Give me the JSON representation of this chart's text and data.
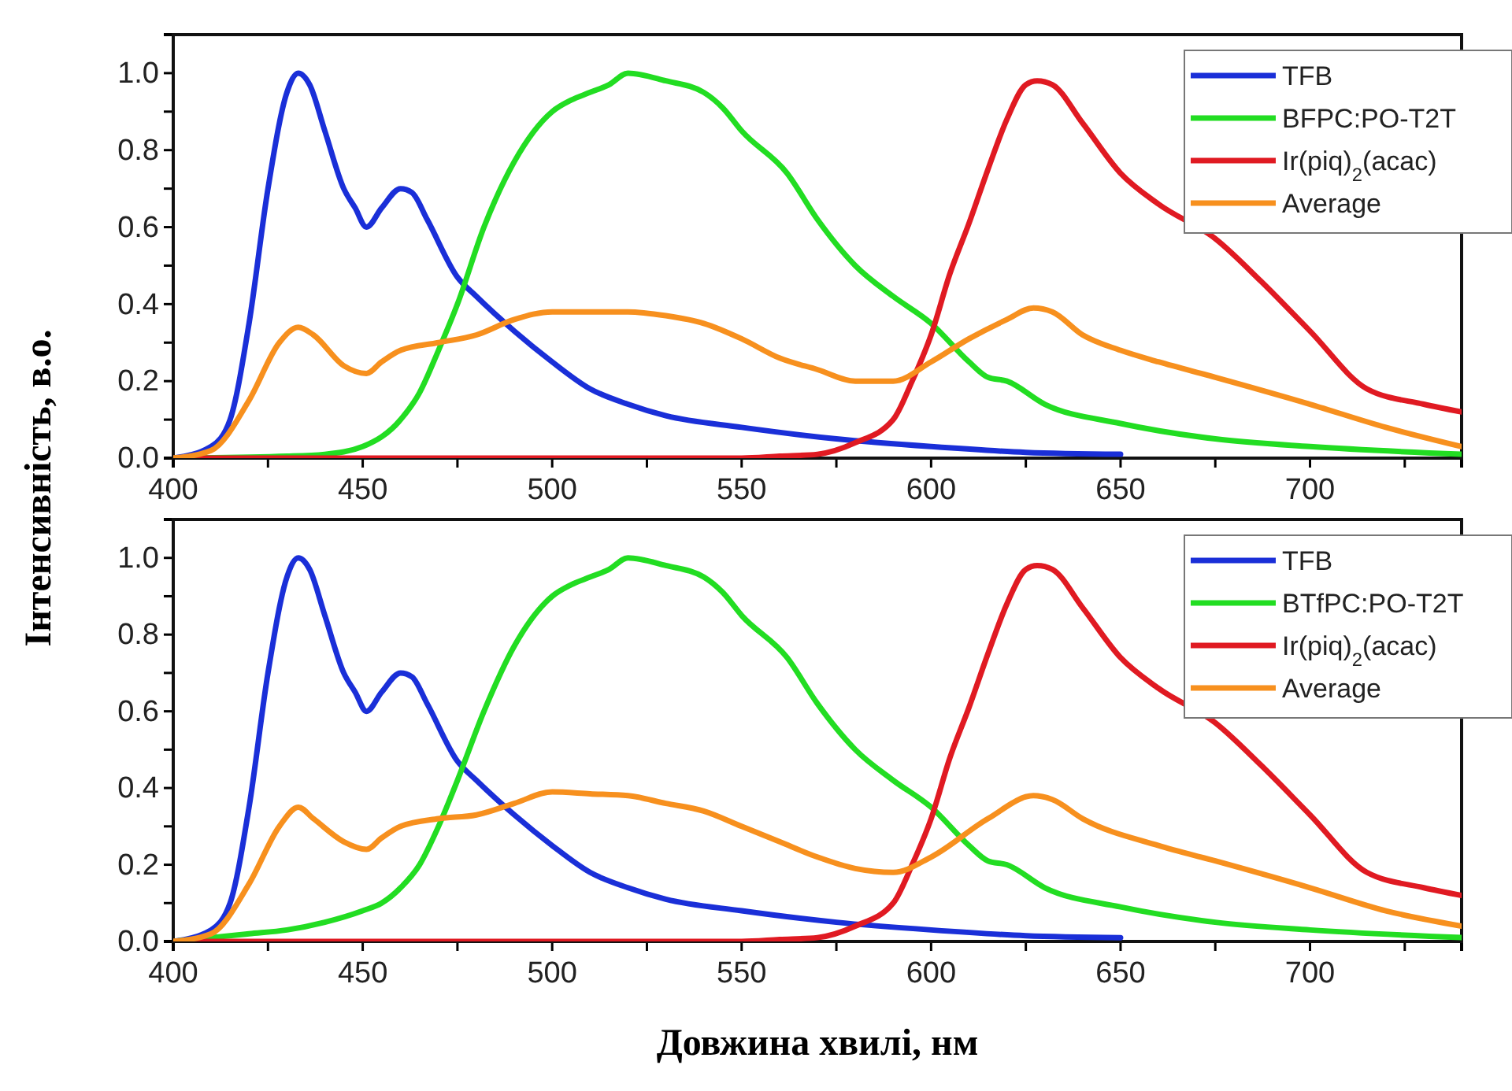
{
  "chart_data": [
    {
      "type": "line",
      "ylabel": "Інтенсивність, в.о.",
      "xlim": [
        400,
        740
      ],
      "ylim": [
        0,
        1.1
      ],
      "xticks": [
        400,
        {
          "value": 425,
          "label": null
        },
        450,
        {
          "value": 475,
          "label": null
        },
        500,
        {
          "value": 525,
          "label": null
        },
        550,
        {
          "value": 575,
          "label": null
        },
        600,
        {
          "value": 625,
          "label": null
        },
        650,
        {
          "value": 675,
          "label": null
        },
        700,
        {
          "value": 725,
          "label": null
        }
      ],
      "yticks": [
        {
          "value": 0,
          "label": "0.0"
        },
        {
          "value": 0.1,
          "label": null
        },
        0.2,
        {
          "value": 0.3,
          "label": null
        },
        0.4,
        {
          "value": 0.5,
          "label": null
        },
        0.6,
        {
          "value": 0.7,
          "label": null
        },
        0.8,
        {
          "value": 0.9,
          "label": null
        },
        {
          "value": 1,
          "label": "1.0"
        }
      ],
      "legend": "top right",
      "grid": false,
      "series": [
        {
          "name": "TFB",
          "color": "#1a2fd8",
          "x": [
            400,
            410,
            415,
            420,
            425,
            430,
            433,
            436,
            440,
            445,
            448,
            451,
            455,
            460,
            463,
            467,
            475,
            480,
            490,
            500,
            510,
            520,
            530,
            550,
            575,
            600,
            625,
            650
          ],
          "values": [
            0,
            0.03,
            0.1,
            0.35,
            0.7,
            0.95,
            1,
            0.97,
            0.85,
            0.7,
            0.65,
            0.6,
            0.65,
            0.7,
            0.69,
            0.62,
            0.47,
            0.42,
            0.33,
            0.25,
            0.18,
            0.14,
            0.11,
            0.08,
            0.05,
            0.03,
            0.015,
            0.01
          ]
        },
        {
          "name": "BFPC:PO-T2T",
          "color": "#22dd22",
          "x": [
            400,
            430,
            440,
            450,
            460,
            465,
            470,
            475,
            482,
            490,
            500,
            505,
            510,
            515,
            520,
            530,
            540,
            545,
            550,
            562,
            570,
            580,
            590,
            600,
            610,
            615,
            620,
            630,
            650,
            675,
            700,
            740
          ],
          "values": [
            0,
            0.005,
            0.01,
            0.03,
            0.1,
            0.17,
            0.28,
            0.4,
            0.6,
            0.77,
            0.9,
            0.93,
            0.95,
            0.97,
            1,
            0.98,
            0.95,
            0.91,
            0.85,
            0.74,
            0.62,
            0.5,
            0.42,
            0.35,
            0.25,
            0.21,
            0.2,
            0.14,
            0.09,
            0.05,
            0.03,
            0.01
          ]
        },
        {
          "name": "Ir(piq)$_{2}$(acac)",
          "color": "#e01a22",
          "x": [
            400,
            550,
            560,
            570,
            580,
            590,
            595,
            600,
            605,
            610,
            615,
            620,
            625,
            628,
            632,
            640,
            650,
            660,
            675,
            687,
            700,
            715,
            730,
            740
          ],
          "values": [
            0,
            0,
            0.005,
            0.01,
            0.04,
            0.1,
            0.2,
            0.32,
            0.48,
            0.61,
            0.75,
            0.88,
            0.97,
            0.98,
            0.97,
            0.87,
            0.74,
            0.66,
            0.57,
            0.46,
            0.33,
            0.18,
            0.14,
            0.12
          ]
        },
        {
          "name": "Average",
          "color": "#f7901e",
          "x": [
            400,
            410,
            420,
            428,
            433,
            437,
            445,
            451,
            455,
            460,
            470,
            480,
            490,
            500,
            510,
            520,
            530,
            540,
            550,
            560,
            570,
            580,
            590,
            600,
            610,
            620,
            627,
            632,
            640,
            650,
            660,
            675,
            700,
            720,
            740
          ],
          "values": [
            0,
            0.02,
            0.15,
            0.3,
            0.34,
            0.32,
            0.24,
            0.22,
            0.25,
            0.28,
            0.3,
            0.32,
            0.36,
            0.38,
            0.38,
            0.38,
            0.37,
            0.35,
            0.31,
            0.26,
            0.23,
            0.2,
            0.2,
            0.25,
            0.31,
            0.36,
            0.39,
            0.38,
            0.32,
            0.28,
            0.25,
            0.21,
            0.14,
            0.08,
            0.03
          ]
        }
      ]
    },
    {
      "type": "line",
      "xlabel": "Довжина хвилі, нм",
      "xlim": [
        400,
        740
      ],
      "ylim": [
        0,
        1.1
      ],
      "xticks": [
        400,
        {
          "value": 425,
          "label": null
        },
        450,
        {
          "value": 475,
          "label": null
        },
        500,
        {
          "value": 525,
          "label": null
        },
        550,
        {
          "value": 575,
          "label": null
        },
        600,
        {
          "value": 625,
          "label": null
        },
        650,
        {
          "value": 675,
          "label": null
        },
        700,
        {
          "value": 725,
          "label": null
        }
      ],
      "yticks": [
        {
          "value": 0,
          "label": "0.0"
        },
        {
          "value": 0.1,
          "label": null
        },
        0.2,
        {
          "value": 0.3,
          "label": null
        },
        0.4,
        {
          "value": 0.5,
          "label": null
        },
        0.6,
        {
          "value": 0.7,
          "label": null
        },
        0.8,
        {
          "value": 0.9,
          "label": null
        },
        {
          "value": 1,
          "label": "1.0"
        }
      ],
      "legend": "top right",
      "grid": false,
      "series": [
        {
          "name": "TFB",
          "color": "#1a2fd8",
          "x": [
            400,
            410,
            415,
            420,
            425,
            430,
            433,
            436,
            440,
            445,
            448,
            451,
            455,
            460,
            463,
            467,
            475,
            480,
            490,
            500,
            510,
            520,
            530,
            550,
            575,
            600,
            625,
            650
          ],
          "values": [
            0,
            0.03,
            0.1,
            0.35,
            0.7,
            0.95,
            1,
            0.97,
            0.85,
            0.7,
            0.65,
            0.6,
            0.65,
            0.7,
            0.69,
            0.62,
            0.47,
            0.42,
            0.33,
            0.25,
            0.18,
            0.14,
            0.11,
            0.08,
            0.05,
            0.03,
            0.015,
            0.01
          ]
        },
        {
          "name": "BTfPC:PO-T2T",
          "color": "#22dd22",
          "x": [
            400,
            410,
            420,
            430,
            440,
            450,
            455,
            460,
            465,
            470,
            475,
            482,
            490,
            500,
            505,
            510,
            515,
            520,
            530,
            540,
            545,
            550,
            562,
            570,
            580,
            590,
            600,
            610,
            615,
            620,
            630,
            650,
            675,
            700,
            740
          ],
          "values": [
            0,
            0.01,
            0.02,
            0.03,
            0.05,
            0.08,
            0.1,
            0.14,
            0.2,
            0.3,
            0.42,
            0.6,
            0.77,
            0.9,
            0.93,
            0.95,
            0.97,
            1,
            0.98,
            0.95,
            0.91,
            0.85,
            0.74,
            0.62,
            0.5,
            0.42,
            0.35,
            0.25,
            0.21,
            0.2,
            0.14,
            0.09,
            0.05,
            0.03,
            0.01
          ]
        },
        {
          "name": "Ir(piq)$_{2}$(acac)",
          "color": "#e01a22",
          "x": [
            400,
            550,
            560,
            570,
            580,
            590,
            595,
            600,
            605,
            610,
            615,
            620,
            625,
            628,
            632,
            640,
            650,
            660,
            675,
            687,
            700,
            715,
            730,
            740
          ],
          "values": [
            0,
            0,
            0.005,
            0.01,
            0.04,
            0.1,
            0.2,
            0.32,
            0.48,
            0.61,
            0.75,
            0.88,
            0.97,
            0.98,
            0.97,
            0.87,
            0.74,
            0.66,
            0.57,
            0.46,
            0.33,
            0.18,
            0.14,
            0.12
          ]
        },
        {
          "name": "Average",
          "color": "#f7901e",
          "x": [
            400,
            410,
            420,
            428,
            433,
            437,
            445,
            451,
            455,
            460,
            470,
            480,
            490,
            500,
            510,
            520,
            530,
            540,
            550,
            560,
            570,
            580,
            590,
            600,
            615,
            627,
            632,
            640,
            660,
            675,
            700,
            720,
            740
          ],
          "values": [
            0,
            0.02,
            0.15,
            0.3,
            0.35,
            0.32,
            0.26,
            0.24,
            0.27,
            0.3,
            0.32,
            0.33,
            0.36,
            0.39,
            0.385,
            0.38,
            0.36,
            0.34,
            0.3,
            0.26,
            0.22,
            0.19,
            0.18,
            0.22,
            0.32,
            0.38,
            0.37,
            0.32,
            0.25,
            0.21,
            0.14,
            0.08,
            0.04
          ]
        }
      ]
    }
  ]
}
